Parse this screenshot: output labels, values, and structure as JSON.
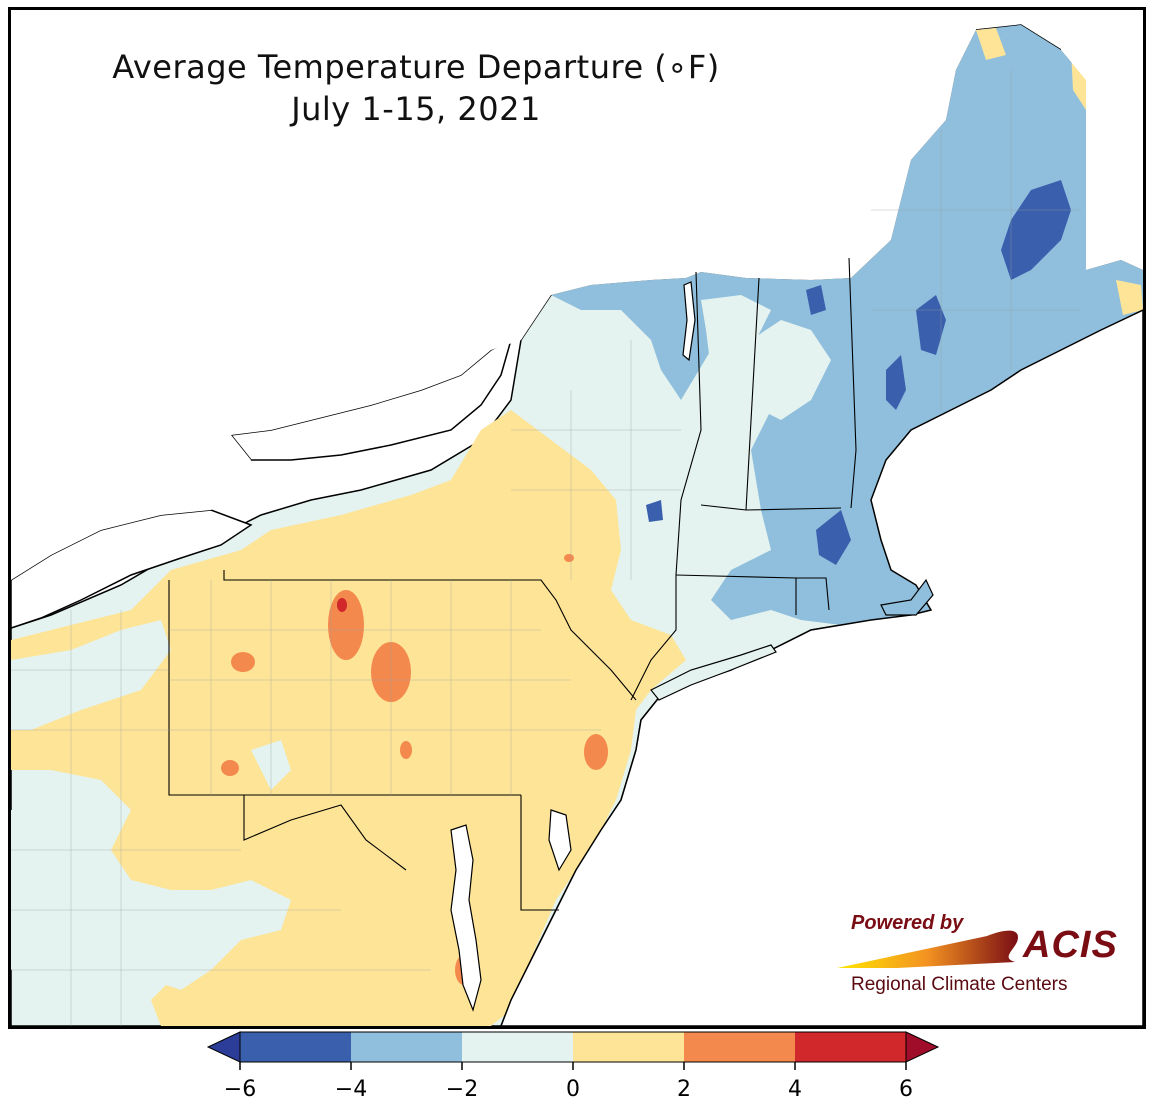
{
  "title": {
    "line1": "Average Temperature Departure (∘F)",
    "line2": "July 1-15, 2021"
  },
  "logo": {
    "powered_by": "Powered by",
    "name": "ACIS",
    "subtitle": "Regional Climate Centers"
  },
  "colorbar": {
    "min": -6,
    "max": 6,
    "extend": "both",
    "tick_labels": [
      "−6",
      "−4",
      "−2",
      "0",
      "2",
      "4",
      "6"
    ],
    "bins": [
      {
        "from": -6,
        "to": -4,
        "color": "#3a5fad"
      },
      {
        "from": -4,
        "to": -2,
        "color": "#8fbfdc"
      },
      {
        "from": -2,
        "to": 0,
        "color": "#e4f3ef"
      },
      {
        "from": 0,
        "to": 2,
        "color": "#fde496"
      },
      {
        "from": 2,
        "to": 4,
        "color": "#f4894e"
      },
      {
        "from": 4,
        "to": 6,
        "color": "#d0282b"
      }
    ],
    "under_color": "#2b3d99",
    "over_color": "#a00d2a"
  },
  "colors": {
    "water": "#ffffff",
    "border": "#000000",
    "county_lines": "#9aa0a0"
  }
}
